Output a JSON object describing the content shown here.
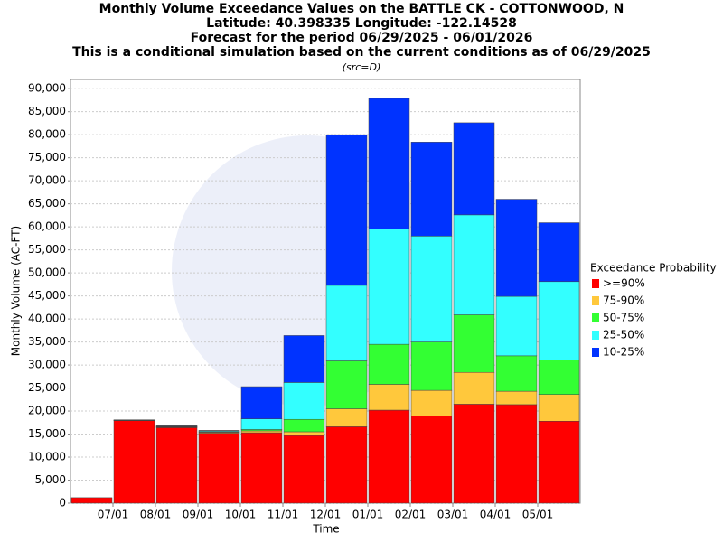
{
  "chart_data": {
    "type": "stacked_bar",
    "title": "Monthly Volume Exceedance Values on the BATTLE CK - COTTONWOOD, N",
    "subtitle_lines": [
      "Latitude: 40.398335 Longitude: -122.14528",
      "Forecast for the period 06/29/2025 - 06/01/2026",
      "This is a conditional simulation based on the current conditions as of 06/29/2025",
      "(src=D)"
    ],
    "x_label": "Time",
    "y_label": "Monthly Volume (AC-FT)",
    "legend_title": "Exceedance Probability",
    "categories": [
      null,
      "07/01",
      "08/01",
      "09/01",
      "10/01",
      "11/01",
      "12/01",
      "01/01",
      "02/01",
      "03/01",
      "04/01",
      "05/01"
    ],
    "series": [
      {
        "name": ">=90%",
        "color": "#ff0000",
        "values": [
          1200,
          17900,
          16400,
          15200,
          15300,
          14700,
          16600,
          20200,
          18900,
          21500,
          21400,
          17800
        ]
      },
      {
        "name": "75-90%",
        "color": "#ffc83c",
        "values": [
          0,
          50,
          100,
          200,
          400,
          800,
          3900,
          5600,
          5600,
          6900,
          2900,
          5800
        ]
      },
      {
        "name": "50-75%",
        "color": "#33ff33",
        "values": [
          0,
          50,
          100,
          100,
          300,
          2700,
          10400,
          8700,
          10500,
          12500,
          7700,
          7500
        ]
      },
      {
        "name": "25-50%",
        "color": "#33ffff",
        "values": [
          0,
          50,
          100,
          200,
          2300,
          8000,
          16400,
          25000,
          23000,
          21700,
          12900,
          17000
        ]
      },
      {
        "name": "10-25%",
        "color": "#0033ff",
        "values": [
          0,
          50,
          100,
          100,
          7000,
          10200,
          32700,
          28400,
          20400,
          20000,
          21100,
          12800
        ]
      }
    ],
    "ylim": [
      0,
      92000
    ],
    "yticks": [
      0,
      {
        "value": 5000,
        "label": "5,000"
      },
      {
        "value": 10000,
        "label": "10,000"
      },
      {
        "value": 15000,
        "label": "15,000"
      },
      {
        "value": 20000,
        "label": "20,000"
      },
      {
        "value": 25000,
        "label": "25,000"
      },
      {
        "value": 30000,
        "label": "30,000"
      },
      {
        "value": 35000,
        "label": "35,000"
      },
      {
        "value": 40000,
        "label": "40,000"
      },
      {
        "value": 45000,
        "label": "45,000"
      },
      {
        "value": 50000,
        "label": "50,000"
      },
      {
        "value": 55000,
        "label": "55,000"
      },
      {
        "value": 60000,
        "label": "60,000"
      },
      {
        "value": 65000,
        "label": "65,000"
      },
      {
        "value": 70000,
        "label": "70,000"
      },
      {
        "value": 75000,
        "label": "75,000"
      },
      {
        "value": 80000,
        "label": "80,000"
      },
      {
        "value": 85000,
        "label": "85,000"
      },
      {
        "value": 90000,
        "label": "90,000"
      }
    ],
    "grid": true
  }
}
